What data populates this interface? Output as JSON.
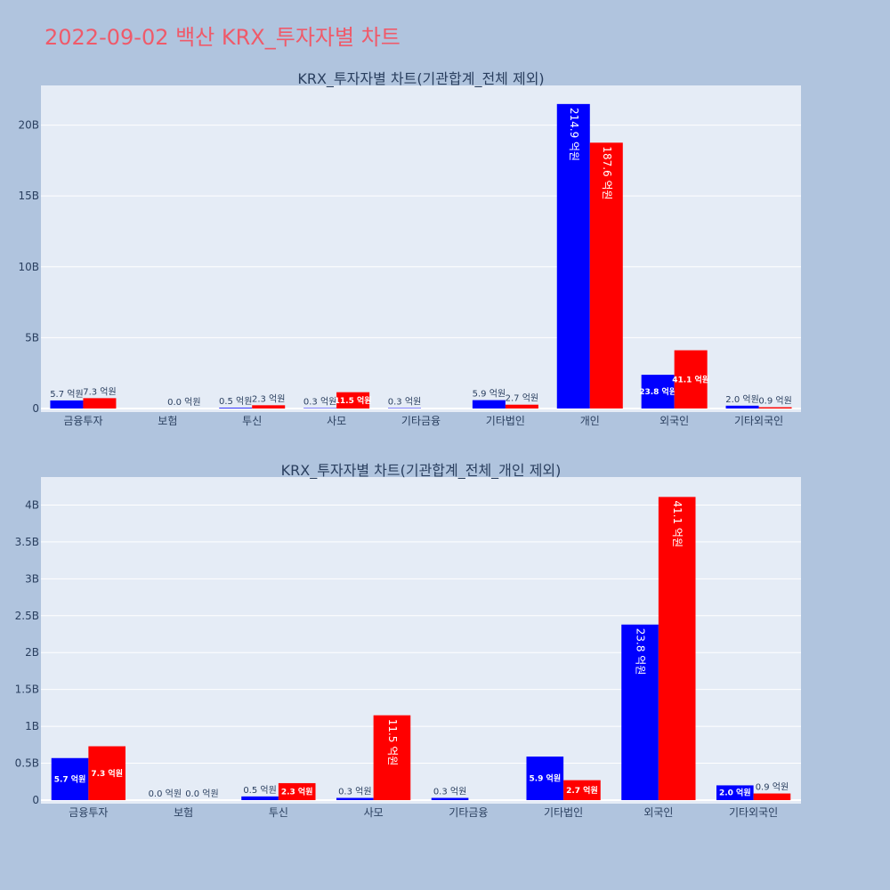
{
  "page": {
    "title": "2022-09-02 백산 KRX_투자자별 차트"
  },
  "colors": {
    "background": "#b0c4de",
    "plot_bg": "#e5ecf6",
    "buy": "#0000ff",
    "sell": "#ff0000",
    "title": "#ef5a6a",
    "text": "#2a3f5f"
  },
  "chart_data": [
    {
      "type": "bar",
      "title": "KRX_투자자별 차트(기관합계_전체 제외)",
      "categories": [
        "금융투자",
        "보험",
        "투신",
        "사모",
        "기타금융",
        "기타법인",
        "개인",
        "외국인",
        "기타외국인"
      ],
      "series": [
        {
          "values": [
            0.57,
            0,
            0.05,
            0.03,
            0.03,
            0.59,
            21.49,
            2.38,
            0.2
          ],
          "labels": [
            "5.7 억원",
            "",
            "0.5 억원",
            "0.3 억원",
            "0.3 억원",
            "5.9 억원",
            "214.9 억원",
            "23.8 억원",
            "2.0 억원"
          ]
        },
        {
          "values": [
            0.73,
            0,
            0.23,
            1.15,
            0,
            0.27,
            18.76,
            4.11,
            0.09
          ],
          "labels": [
            "7.3 억원",
            "0.0 억원",
            "2.3 억원",
            "11.5 억원",
            "",
            "2.7 억원",
            "187.6 억원",
            "41.1 억원",
            "0.9 억원"
          ]
        }
      ],
      "yunit": "B",
      "ylim": [
        0,
        22.8
      ],
      "yticks": [
        {
          "value": 0,
          "label": "0"
        },
        {
          "value": 5,
          "label": "5B"
        },
        {
          "value": 10,
          "label": "10B"
        },
        {
          "value": 15,
          "label": "15B"
        },
        {
          "value": 20,
          "label": "20B"
        }
      ],
      "grid": true,
      "legend": "none"
    },
    {
      "type": "bar",
      "title": "KRX_투자자별 차트(기관합계_전체_개인 제외)",
      "categories": [
        "금융투자",
        "보험",
        "투신",
        "사모",
        "기타금융",
        "기타법인",
        "외국인",
        "기타외국인"
      ],
      "series": [
        {
          "values": [
            0.57,
            0,
            0.05,
            0.03,
            0.03,
            0.59,
            2.38,
            0.2
          ],
          "labels": [
            "5.7 억원",
            "0.0 억원",
            "0.5 억원",
            "0.3 억원",
            "0.3 억원",
            "5.9 억원",
            "23.8 억원",
            "2.0 억원"
          ]
        },
        {
          "values": [
            0.73,
            0,
            0.23,
            1.15,
            0,
            0.27,
            4.11,
            0.09
          ],
          "labels": [
            "7.3 억원",
            "0.0 억원",
            "2.3 억원",
            "11.5 억원",
            "",
            "2.7 억원",
            "41.1 억원",
            "0.9 억원"
          ]
        }
      ],
      "yunit": "B",
      "ylim": [
        0,
        4.38
      ],
      "yticks": [
        {
          "value": 0,
          "label": "0"
        },
        {
          "value": 0.5,
          "label": "0.5B"
        },
        {
          "value": 1,
          "label": "1B"
        },
        {
          "value": 1.5,
          "label": "1.5B"
        },
        {
          "value": 2,
          "label": "2B"
        },
        {
          "value": 2.5,
          "label": "2.5B"
        },
        {
          "value": 3,
          "label": "3B"
        },
        {
          "value": 3.5,
          "label": "3.5B"
        },
        {
          "value": 4,
          "label": "4B"
        }
      ],
      "grid": true,
      "legend": "none"
    }
  ]
}
